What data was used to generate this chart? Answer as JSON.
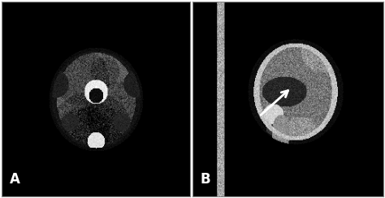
{
  "figure_width": 4.74,
  "figure_height": 2.44,
  "dpi": 100,
  "bg_color": "#ffffff",
  "panel_A_label": "A",
  "panel_B_label": "B",
  "label_color": "#ffffff",
  "label_fontsize": 12,
  "arrow_color": "#ffffff"
}
